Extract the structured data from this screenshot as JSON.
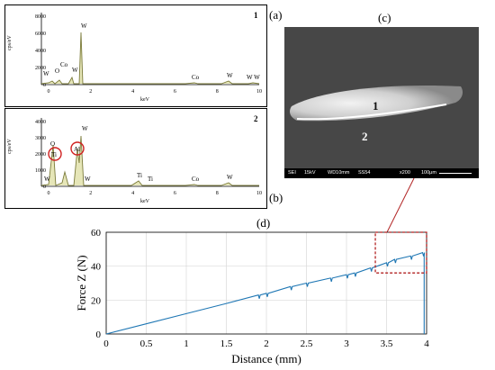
{
  "panel_labels": {
    "a": "(a)",
    "b": "(b)",
    "c": "(c)",
    "d": "(d)"
  },
  "eds_1": {
    "number": "1",
    "ylabel": "cps/eV",
    "xlabel": "keV",
    "yticks": [
      "0",
      "2000",
      "4000",
      "6000",
      "8000"
    ],
    "xticks": [
      "0",
      "2",
      "4",
      "6",
      "8",
      "10"
    ],
    "peaks": [
      "W",
      "O",
      "Co",
      "W",
      "W",
      "Co",
      "W",
      "W W"
    ]
  },
  "eds_2": {
    "number": "2",
    "ylabel": "cps/eV",
    "xlabel": "keV",
    "yticks": [
      "0",
      "1000",
      "2000",
      "3000",
      "4000"
    ],
    "xticks": [
      "0",
      "2",
      "4",
      "6",
      "8",
      "10"
    ],
    "peaks": [
      "O",
      "Ti",
      "Al",
      "W",
      "Ti",
      "Ti",
      "Co",
      "W",
      "W",
      "W"
    ]
  },
  "sem": {
    "region_1": "1",
    "region_2": "2",
    "info": [
      "SEI",
      "15kV",
      "WD10mm",
      "SS54",
      "x200",
      "100μm"
    ]
  },
  "chart_data": {
    "type": "line",
    "xlabel": "Distance (mm)",
    "ylabel": "Force Z (N)",
    "xlim": [
      0,
      4
    ],
    "ylim": [
      0,
      60
    ],
    "xticks": [
      "0",
      "0.5",
      "1",
      "1.5",
      "2",
      "2.5",
      "3",
      "3.5",
      "4"
    ],
    "yticks": [
      "0",
      "20",
      "40",
      "60"
    ],
    "grid": true,
    "x": [
      0,
      0.5,
      1,
      1.5,
      1.9,
      2.0,
      2.3,
      2.5,
      2.8,
      3.0,
      3.1,
      3.3,
      3.5,
      3.6,
      3.8,
      3.95,
      3.97
    ],
    "y": [
      0,
      6,
      12,
      18,
      23,
      24,
      28,
      30,
      33,
      35,
      36,
      39,
      42,
      44,
      46,
      48,
      46
    ],
    "series_color": "#1f77b4"
  },
  "colors": {
    "highlight": "#b22222",
    "curve": "#1f77b4",
    "grid": "#d9d9d9"
  }
}
